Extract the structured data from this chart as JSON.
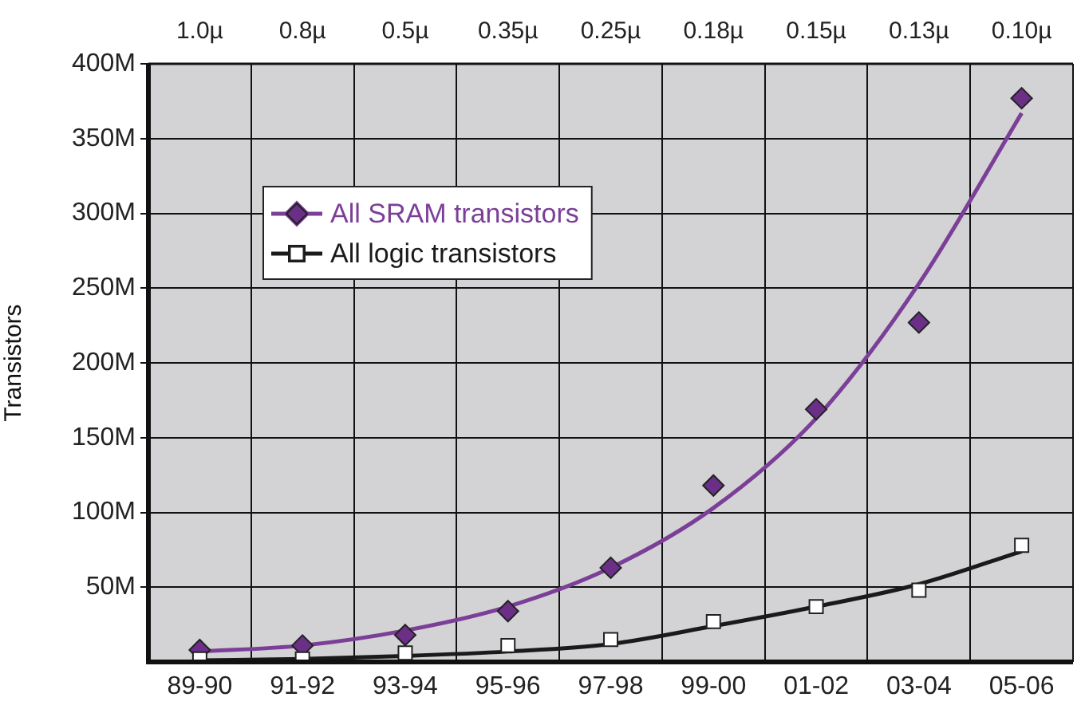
{
  "chart_data": {
    "type": "line",
    "ylabel": "Transistors",
    "categories": [
      "89-90",
      "91-92",
      "93-94",
      "95-96",
      "97-98",
      "99-00",
      "01-02",
      "03-04",
      "05-06"
    ],
    "series": [
      {
        "type": "line",
        "color": "#7b3f98",
        "marker": "none",
        "values": [
          7,
          11,
          21,
          37,
          63,
          103,
          163,
          253,
          367
        ]
      },
      {
        "type": "scatter",
        "name": "All SRAM transistors",
        "color": "#6b2f87",
        "marker": "diamond",
        "values": [
          8,
          11,
          18,
          34,
          63,
          118,
          169,
          227,
          377
        ]
      },
      {
        "type": "line",
        "color": "#1a1a1a",
        "marker": "none",
        "values": [
          1,
          2,
          4,
          7,
          12,
          24,
          37,
          52,
          74
        ]
      },
      {
        "type": "scatter",
        "name": "All logic transistors",
        "color": "#ffffff",
        "marker": "square",
        "values": [
          2,
          2,
          6,
          11,
          15,
          27,
          37,
          48,
          78
        ]
      }
    ],
    "ylim": [
      0,
      400
    ],
    "yticks": [
      {
        "value": 50,
        "label": "50M"
      },
      {
        "value": 100,
        "label": "100M"
      },
      {
        "value": 150,
        "label": "150M"
      },
      {
        "value": 200,
        "label": "200M"
      },
      {
        "value": 250,
        "label": "250M"
      },
      {
        "value": 300,
        "label": "300M"
      },
      {
        "value": 350,
        "label": "350M"
      },
      {
        "value": 400,
        "label": "400M"
      }
    ],
    "annotations": [
      "1.0µ",
      "0.8µ",
      "0.5µ",
      "0.35µ",
      "0.25µ",
      "0.18µ",
      "0.15µ",
      "0.13µ",
      "0.10µ"
    ],
    "grid": true,
    "legend": "top left"
  }
}
